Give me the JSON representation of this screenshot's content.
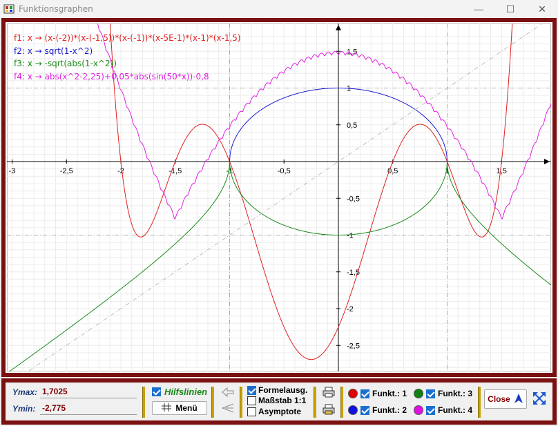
{
  "window": {
    "title": "Funktionsgraphen",
    "minimize": "—",
    "maximize": "☐",
    "close": "✕"
  },
  "legend": [
    {
      "text": "f1: x → (x-(-2))*(x-(-1,5))*(x-(-1))*(x-5E-1)*(x-1)*(x-1,5)",
      "color": "#e02020"
    },
    {
      "text": "f2: x → sqrt(1-x^2)",
      "color": "#1a1ad0"
    },
    {
      "text": "f3: x → -sqrt(abs(1-x^2))",
      "color": "#1a8a1a"
    },
    {
      "text": "f4: x → abs(x^2-2,25)+0,05*abs(sin(50*x))-0,8",
      "color": "#e020e0"
    }
  ],
  "chart_data": {
    "type": "line",
    "x_range": [
      -3,
      1.85
    ],
    "y_range": [
      -2.775,
      1.7025
    ],
    "x_ticks": [
      "-3",
      "-2,5",
      "-2",
      "-1,5",
      "-1",
      "-0,5",
      "0,5",
      "1",
      "1,5"
    ],
    "y_ticks": [
      "1,5",
      "1",
      "0,5",
      "-0,5",
      "-1",
      "-1,5",
      "-2",
      "-2,5"
    ],
    "grid": true,
    "series": [
      {
        "name": "f1",
        "expr": "(x+2)(x+1.5)(x+1)(x-0.5)(x-1)(x-1.5)",
        "color": "#e02020"
      },
      {
        "name": "f2",
        "expr": "sqrt(1-x^2)",
        "color": "#1a1ad0"
      },
      {
        "name": "f3",
        "expr": "-sqrt(abs(1-x^2))",
        "color": "#1a8a1a"
      },
      {
        "name": "f4",
        "expr": "abs(x^2-2.25)+0.05*abs(sin(50x))-0.8",
        "color": "#e020e0"
      },
      {
        "name": "diagonal",
        "expr": "x",
        "color": "#bbbbbb"
      }
    ]
  },
  "panel": {
    "ymax_label": "Ymax:",
    "ymax_value": "1,7025",
    "ymin_label": "Ymin:",
    "ymin_value": "-2,775",
    "hilfslinien": "Hilfslinien",
    "menu": "Menü",
    "formelausg": "Formelausg.",
    "massstab": "Maßstab 1:1",
    "asymptote": "Asymptote",
    "funkt1": "Funkt.: 1",
    "funkt2": "Funkt.: 2",
    "funkt3": "Funkt.: 3",
    "funkt4": "Funkt.: 4",
    "close": "Close",
    "colors": {
      "f1": "#e00000",
      "f2": "#1010e0",
      "f3": "#108010",
      "f4": "#e010e0"
    }
  }
}
